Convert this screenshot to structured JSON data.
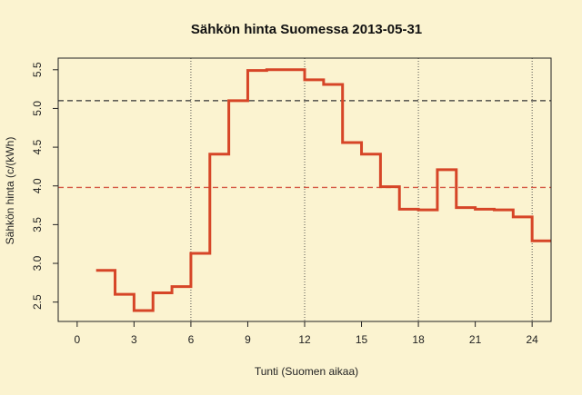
{
  "chart_data": {
    "type": "line",
    "step": true,
    "title": "Sähkön hinta Suomessa 2013-05-31",
    "xlabel": "Tunti (Suomen aikaa)",
    "ylabel": "Sähkön hinta (c/(kWh)",
    "xlim": [
      -1,
      25
    ],
    "ylim": [
      2.25,
      5.65
    ],
    "xticks": [
      0,
      3,
      6,
      9,
      12,
      15,
      18,
      21,
      24
    ],
    "yticks": [
      2.5,
      3.0,
      3.5,
      4.0,
      4.5,
      5.0,
      5.5
    ],
    "ytick_labels": [
      "2.5",
      "3.0",
      "3.5",
      "4.0",
      "4.5",
      "5.0",
      "5.5"
    ],
    "vertical_dotted_lines_x": [
      6,
      12,
      18,
      24
    ],
    "reference_lines": [
      {
        "y": 5.1,
        "color": "#333333",
        "style": "dashed"
      },
      {
        "y": 3.98,
        "color": "#d65a45",
        "style": "dashed"
      }
    ],
    "series": [
      {
        "color": "#d64527",
        "x": [
          1,
          2,
          3,
          4,
          5,
          6,
          7,
          8,
          9,
          10,
          11,
          12,
          13,
          14,
          15,
          16,
          17,
          18,
          19,
          20,
          21,
          22,
          23,
          24
        ],
        "y": [
          2.91,
          2.6,
          2.39,
          2.62,
          2.7,
          3.13,
          4.41,
          5.1,
          5.49,
          5.5,
          5.5,
          5.37,
          5.31,
          4.56,
          4.41,
          3.99,
          3.7,
          3.69,
          4.21,
          3.72,
          3.7,
          3.69,
          3.6,
          3.29
        ]
      }
    ]
  }
}
